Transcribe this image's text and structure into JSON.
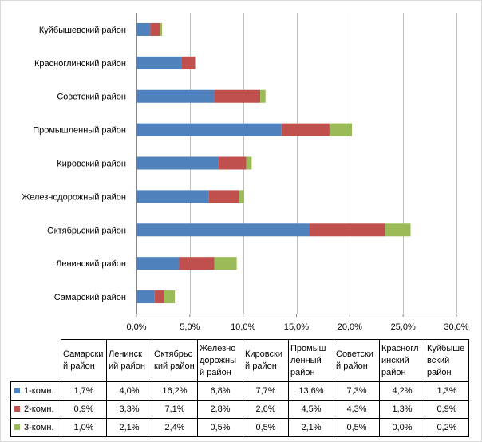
{
  "chart_data": {
    "type": "bar",
    "orientation": "horizontal",
    "stacked": true,
    "categories": [
      "Самарский район",
      "Ленинский район",
      "Октябрьский район",
      "Железнодорожный район",
      "Кировский район",
      "Промышленный район",
      "Советский район",
      "Красноглинский район",
      "Куйбышевский район"
    ],
    "table_headers": [
      "Самарски й район",
      "Ленинск ий район",
      "Октябрьс кий район",
      "Железно дорожны й район",
      "Кировски й район",
      "Промыш ленный район",
      "Советски й район",
      "Красногл инский район",
      "Куйбыше вский район"
    ],
    "series": [
      {
        "name": "1-комн.",
        "color": "#4f81bd",
        "values": [
          1.7,
          4.0,
          16.2,
          6.8,
          7.7,
          13.6,
          7.3,
          4.2,
          1.3
        ],
        "labels": [
          "1,7%",
          "4,0%",
          "16,2%",
          "6,8%",
          "7,7%",
          "13,6%",
          "7,3%",
          "4,2%",
          "1,3%"
        ]
      },
      {
        "name": "2-комн.",
        "color": "#c0504d",
        "values": [
          0.9,
          3.3,
          7.1,
          2.8,
          2.6,
          4.5,
          4.3,
          1.3,
          0.9
        ],
        "labels": [
          "0,9%",
          "3,3%",
          "7,1%",
          "2,8%",
          "2,6%",
          "4,5%",
          "4,3%",
          "1,3%",
          "0,9%"
        ]
      },
      {
        "name": "3-комн.",
        "color": "#9bbb59",
        "values": [
          1.0,
          2.1,
          2.4,
          0.5,
          0.5,
          2.1,
          0.5,
          0.0,
          0.2
        ],
        "labels": [
          "1,0%",
          "2,1%",
          "2,4%",
          "0,5%",
          "0,5%",
          "2,1%",
          "0,5%",
          "0,0%",
          "0,2%"
        ]
      }
    ],
    "xlim": [
      0,
      30
    ],
    "x_ticks": [
      0,
      5,
      10,
      15,
      20,
      25,
      30
    ],
    "x_tick_labels": [
      "0,0%",
      "5,0%",
      "10,0%",
      "15,0%",
      "20,0%",
      "25,0%",
      "30,0%"
    ],
    "grid": true,
    "legend": "data table below chart"
  }
}
